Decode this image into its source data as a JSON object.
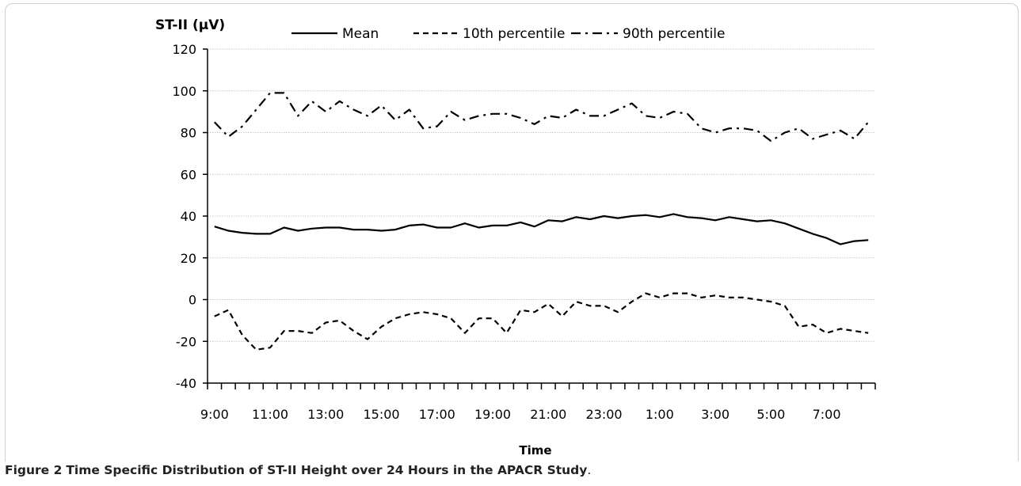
{
  "chart_data": {
    "type": "line",
    "ylabel": "ST-II (μV)",
    "xlabel": "Time",
    "ylim": [
      -40,
      120
    ],
    "yticks": [
      "120",
      "100",
      "80",
      "60",
      "40",
      "20",
      "0",
      "-20",
      "-40"
    ],
    "xtick_labels": [
      "9:00",
      "11:00",
      "13:00",
      "15:00",
      "17:00",
      "19:00",
      "21:00",
      "23:00",
      "1:00",
      "3:00",
      "5:00",
      "7:00"
    ],
    "x_points": 48,
    "legend_position": "top",
    "series": [
      {
        "name": "Mean",
        "style": "solid",
        "values": [
          35,
          33,
          32,
          31.5,
          31.5,
          34.5,
          33,
          34,
          34.5,
          34.5,
          33.5,
          33.5,
          33,
          33.5,
          35.5,
          36,
          34.5,
          34.5,
          36.5,
          34.5,
          35.5,
          35.5,
          37,
          35,
          38,
          37.5,
          39.5,
          38.5,
          40,
          39,
          40,
          40.5,
          39.5,
          41,
          39.5,
          39,
          38,
          39.5,
          38.5,
          37.5,
          38,
          36.5,
          34,
          31.5,
          29.5,
          26.5,
          28,
          28.5
        ]
      },
      {
        "name": "10th percentile",
        "style": "dashed",
        "values": [
          -8,
          -5,
          -17,
          -24,
          -23,
          -15,
          -15,
          -16,
          -11,
          -10,
          -15,
          -19,
          -13,
          -9,
          -7,
          -6,
          -7,
          -9,
          -16,
          -9,
          -9,
          -16,
          -5,
          -6,
          -2,
          -8,
          -1,
          -3,
          -3,
          -6,
          -1,
          3,
          1,
          3,
          3,
          1,
          2,
          1,
          1,
          0,
          -1,
          -3,
          -13,
          -12,
          -16,
          -14,
          -15,
          -16
        ]
      },
      {
        "name": "90th percentile",
        "style": "dashdot",
        "values": [
          85,
          78,
          83,
          91,
          99,
          99,
          88,
          95,
          90,
          95,
          91,
          88,
          93,
          86,
          91,
          82,
          83,
          90,
          86,
          88,
          89,
          89,
          87,
          84,
          88,
          87,
          91,
          88,
          88,
          91,
          94,
          88,
          87,
          90,
          89,
          82,
          80,
          82,
          82,
          81,
          76,
          80,
          82,
          77,
          79,
          81,
          77,
          85
        ]
      }
    ]
  },
  "caption": {
    "label": "Figure 2",
    "title": "Time Specific Distribution of ST-II Height over 24 Hours in the APACR Study",
    "suffix": "."
  },
  "colors": {
    "line": "#000000",
    "grid": "#c8c8c8",
    "text": "#000000"
  }
}
